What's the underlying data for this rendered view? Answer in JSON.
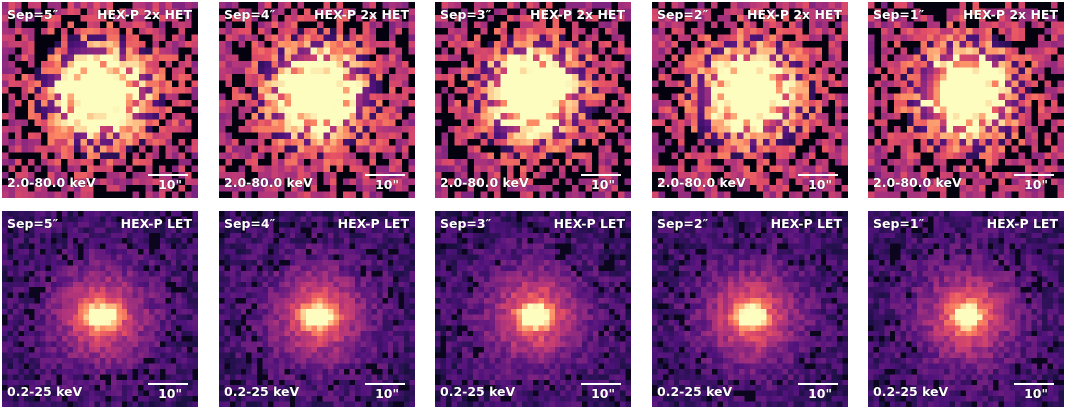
{
  "scale_label": "10\"",
  "rows": [
    {
      "instrument": "HEX-P 2x HET",
      "band": "2.0-80.0 keV",
      "panels": [
        {
          "sep": "Sep=5″"
        },
        {
          "sep": "Sep=4″"
        },
        {
          "sep": "Sep=3″"
        },
        {
          "sep": "Sep=2″"
        },
        {
          "sep": "Sep=1″"
        }
      ]
    },
    {
      "instrument": "HEX-P LET",
      "band": "0.2-25 keV",
      "panels": [
        {
          "sep": "Sep=5″"
        },
        {
          "sep": "Sep=4″"
        },
        {
          "sep": "Sep=3″"
        },
        {
          "sep": "Sep=2″"
        },
        {
          "sep": "Sep=1″"
        }
      ]
    }
  ],
  "colormap": "magma"
}
